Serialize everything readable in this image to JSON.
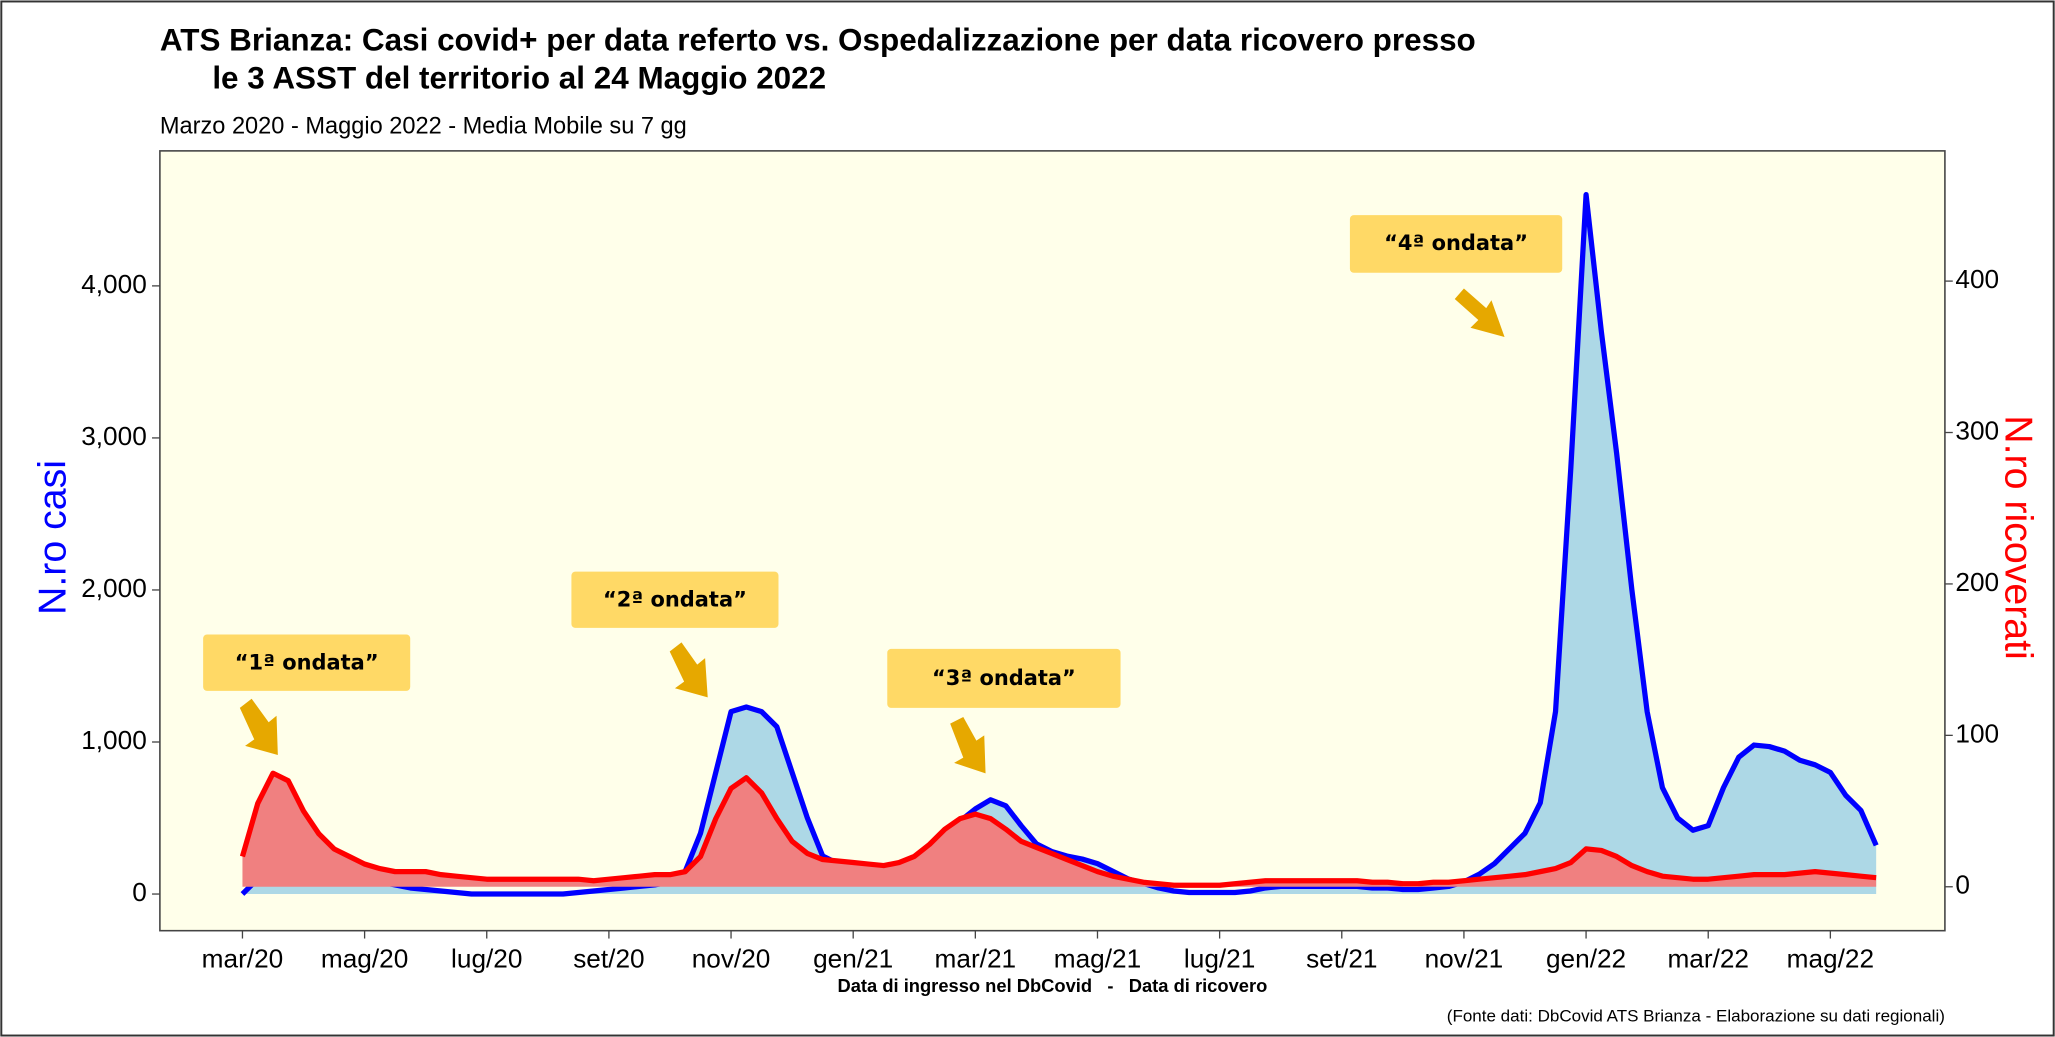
{
  "chart_data": {
    "type": "area-line",
    "title": [
      "ATS Brianza: Casi covid+ per data referto vs. Ospedalizzazione per data ricovero presso",
      "le 3 ASST del territorio al 24 Maggio 2022"
    ],
    "subtitle": "Marzo 2020 - Maggio 2022 - Media Mobile su 7 gg",
    "x_label": "Data di ingresso nel DbCovid   -   Data di ricovero",
    "y_label": "N.ro casi",
    "y2_label": "N.ro ricoverati",
    "source": "(Fonte dati: DbCovid ATS Brianza - Elaborazione su dati regionali)",
    "categories": [
      "mar/20",
      null,
      null,
      null,
      null,
      null,
      null,
      null,
      "mag/20",
      null,
      null,
      null,
      null,
      null,
      null,
      null,
      "lug/20",
      null,
      null,
      null,
      null,
      null,
      null,
      null,
      "set/20",
      null,
      null,
      null,
      null,
      null,
      null,
      null,
      "nov/20",
      null,
      null,
      null,
      null,
      null,
      null,
      null,
      "gen/21",
      null,
      null,
      null,
      null,
      null,
      null,
      null,
      "mar/21",
      null,
      null,
      null,
      null,
      null,
      null,
      null,
      "mag/21",
      null,
      null,
      null,
      null,
      null,
      null,
      null,
      "lug/21",
      null,
      null,
      null,
      null,
      null,
      null,
      null,
      "set/21",
      null,
      null,
      null,
      null,
      null,
      null,
      null,
      "nov/21",
      null,
      null,
      null,
      null,
      null,
      null,
      null,
      "gen/22",
      null,
      null,
      null,
      null,
      null,
      null,
      null,
      "mar/22",
      null,
      null,
      null,
      null,
      null,
      null,
      null,
      "mag/22",
      null,
      null,
      null
    ],
    "series": [
      {
        "name": "N.ro casi",
        "color": "#0000ff",
        "area_color": "#add8e6",
        "values": [
          0,
          100,
          200,
          250,
          250,
          200,
          150,
          120,
          100,
          80,
          60,
          40,
          30,
          20,
          10,
          0,
          0,
          0,
          0,
          0,
          0,
          0,
          10,
          20,
          30,
          40,
          50,
          60,
          80,
          150,
          400,
          800,
          1200,
          1230,
          1200,
          1100,
          800,
          500,
          250,
          200,
          180,
          170,
          150,
          160,
          200,
          250,
          350,
          480,
          560,
          620,
          580,
          450,
          330,
          280,
          250,
          230,
          200,
          150,
          100,
          70,
          40,
          20,
          10,
          10,
          10,
          10,
          20,
          40,
          50,
          50,
          50,
          50,
          50,
          50,
          40,
          40,
          30,
          30,
          40,
          50,
          80,
          130,
          200,
          300,
          400,
          600,
          1200,
          2800,
          4600,
          3700,
          2900,
          2000,
          1200,
          700,
          500,
          420,
          450,
          700,
          900,
          980,
          970,
          940,
          880,
          850,
          800,
          650,
          550,
          320
        ]
      },
      {
        "name": "N.ro ricoverati",
        "axis": "y2",
        "color": "#ff0000",
        "area_color": "#f08080",
        "values": [
          20,
          55,
          75,
          70,
          50,
          35,
          25,
          20,
          15,
          12,
          10,
          10,
          10,
          8,
          7,
          6,
          5,
          5,
          5,
          5,
          5,
          5,
          5,
          4,
          5,
          6,
          7,
          8,
          8,
          10,
          20,
          45,
          65,
          72,
          62,
          45,
          30,
          22,
          18,
          17,
          16,
          15,
          14,
          16,
          20,
          28,
          38,
          45,
          48,
          45,
          38,
          30,
          26,
          22,
          18,
          14,
          10,
          7,
          5,
          3,
          2,
          1,
          1,
          1,
          1,
          2,
          3,
          4,
          4,
          4,
          4,
          4,
          4,
          4,
          3,
          3,
          2,
          2,
          3,
          3,
          4,
          5,
          6,
          7,
          8,
          10,
          12,
          16,
          25,
          24,
          20,
          14,
          10,
          7,
          6,
          5,
          5,
          6,
          7,
          8,
          8,
          8,
          9,
          10,
          9,
          8,
          7,
          6
        ]
      }
    ],
    "ylim": [
      -241,
      4888
    ],
    "yticks": [
      0,
      {
        "value": 1000,
        "label": "1,000"
      },
      {
        "value": 2000,
        "label": "2,000"
      },
      {
        "value": 3000,
        "label": "3,000"
      },
      {
        "value": 4000,
        "label": "4,000"
      }
    ],
    "y2lim": [
      -29,
      486
    ],
    "y2ticks": [
      0,
      100,
      200,
      300,
      400
    ],
    "grid": false,
    "annotations": [
      {
        "text": "“1ª ondata”"
      },
      {
        "text": "“2ª ondata”"
      },
      {
        "text": "“3ª ondata”"
      },
      {
        "text": "“4ª ondata”"
      }
    ]
  }
}
